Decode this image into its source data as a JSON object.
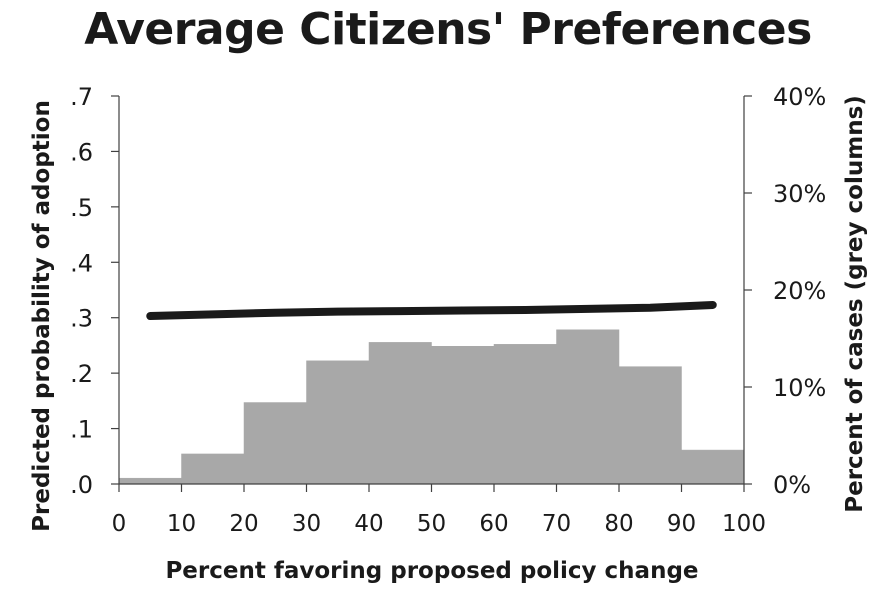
{
  "chart_data": {
    "type": "bar",
    "title": "Average Citizens' Preferences",
    "xlabel": "Percent favoring proposed policy change",
    "ylabel": "Predicted probability of adoption",
    "y2label": "Percent of cases (grey columns)",
    "xlim": [
      0,
      100
    ],
    "ylim": [
      0,
      0.7
    ],
    "y2lim": [
      0,
      40
    ],
    "x_ticks": [
      0,
      10,
      20,
      30,
      40,
      50,
      60,
      70,
      80,
      90,
      100
    ],
    "x_tick_labels": [
      "0",
      "10",
      "20",
      "30",
      "40",
      "50",
      "60",
      "70",
      "80",
      "90",
      "100"
    ],
    "y_ticks": [
      0,
      0.1,
      0.2,
      0.3,
      0.4,
      0.5,
      0.6,
      0.7
    ],
    "y_tick_labels": [
      ".0",
      ".1",
      ".2",
      ".3",
      ".4",
      ".5",
      ".6",
      ".7"
    ],
    "y2_ticks": [
      0,
      10,
      20,
      30,
      40
    ],
    "y2_tick_labels": [
      "0%",
      "10%",
      "20%",
      "30%",
      "40%"
    ],
    "grid": false,
    "legend": "none",
    "series": [
      {
        "type": "bar",
        "axis": "right",
        "color": "#a8a8a8",
        "bins": [
          {
            "from": 0,
            "to": 10,
            "value": 0.6
          },
          {
            "from": 10,
            "to": 20,
            "value": 3.1
          },
          {
            "from": 20,
            "to": 30,
            "value": 8.4
          },
          {
            "from": 30,
            "to": 40,
            "value": 12.7
          },
          {
            "from": 40,
            "to": 50,
            "value": 14.6
          },
          {
            "from": 50,
            "to": 60,
            "value": 14.2
          },
          {
            "from": 60,
            "to": 70,
            "value": 14.4
          },
          {
            "from": 70,
            "to": 80,
            "value": 15.9
          },
          {
            "from": 80,
            "to": 90,
            "value": 12.1
          },
          {
            "from": 90,
            "to": 100,
            "value": 3.5
          }
        ]
      },
      {
        "type": "line",
        "axis": "left",
        "color": "#1a1a1a",
        "x": [
          5,
          15,
          25,
          35,
          45,
          55,
          65,
          75,
          85,
          95
        ],
        "y": [
          0.303,
          0.306,
          0.309,
          0.311,
          0.312,
          0.313,
          0.314,
          0.316,
          0.318,
          0.323
        ]
      }
    ]
  }
}
